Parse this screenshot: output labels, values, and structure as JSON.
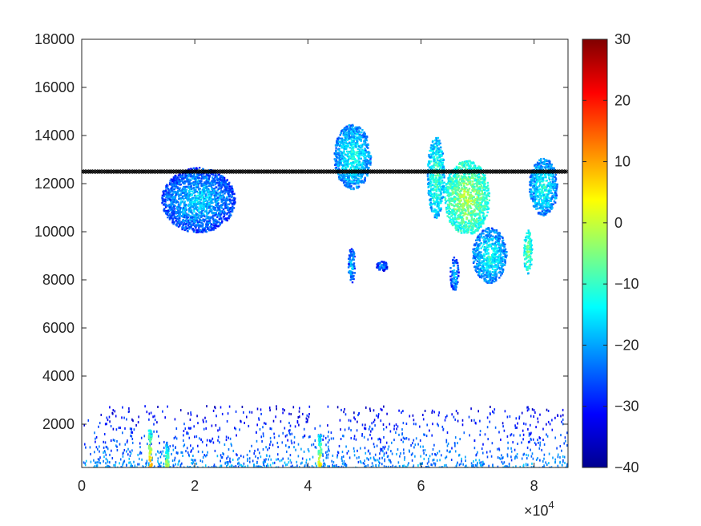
{
  "chart_data": {
    "type": "heatmap",
    "title": "",
    "xlabel": "",
    "ylabel": "",
    "xlim": [
      0,
      86000
    ],
    "ylim": [
      200,
      18000
    ],
    "x_ticks": [
      0,
      20000,
      40000,
      60000,
      80000
    ],
    "x_tick_labels": [
      "0",
      "2",
      "4",
      "6",
      "8"
    ],
    "x_exponent_label": "×10",
    "x_exponent_power": "4",
    "y_ticks": [
      2000,
      4000,
      6000,
      8000,
      10000,
      12000,
      14000,
      16000,
      18000
    ],
    "y_tick_labels": [
      "2000",
      "4000",
      "6000",
      "8000",
      "10000",
      "12000",
      "14000",
      "16000",
      "18000"
    ],
    "colorbar": {
      "limits": [
        -40,
        30
      ],
      "ticks": [
        -40,
        -30,
        -20,
        -10,
        0,
        10,
        20,
        30
      ],
      "tick_labels": [
        "−40",
        "−30",
        "−20",
        "−10",
        "0",
        "10",
        "20",
        "30"
      ],
      "colormap": "jet"
    },
    "reference_line": {
      "y": 12500,
      "color": "#000000",
      "style": "dense black markers"
    },
    "echo_regions": [
      {
        "x": [
          14000,
          27000
        ],
        "y": [
          10000,
          12700
        ],
        "value": -22
      },
      {
        "x": [
          44500,
          51000
        ],
        "y": [
          11800,
          14500
        ],
        "value": -18
      },
      {
        "x": [
          47000,
          48200
        ],
        "y": [
          7900,
          9400
        ],
        "value": -22
      },
      {
        "x": [
          52000,
          54000
        ],
        "y": [
          8400,
          8800
        ],
        "value": -26
      },
      {
        "x": [
          61000,
          64000
        ],
        "y": [
          10600,
          14000
        ],
        "value": -14
      },
      {
        "x": [
          64000,
          72000
        ],
        "y": [
          9900,
          13000
        ],
        "value": -8
      },
      {
        "x": [
          69000,
          75000
        ],
        "y": [
          7900,
          10200
        ],
        "value": -18
      },
      {
        "x": [
          65000,
          66500
        ],
        "y": [
          7600,
          9000
        ],
        "value": -22
      },
      {
        "x": [
          78000,
          79500
        ],
        "y": [
          8300,
          10100
        ],
        "value": -10
      },
      {
        "x": [
          79000,
          84000
        ],
        "y": [
          10700,
          13100
        ],
        "value": -18
      },
      {
        "x": [
          0,
          86000
        ],
        "y": [
          200,
          2800
        ],
        "value": -28,
        "type": "surface clutter"
      }
    ],
    "hot_spots": [
      {
        "x": 12000,
        "y_top": 1800,
        "value": 15
      },
      {
        "x": 15000,
        "y_top": 1300,
        "value": 5
      },
      {
        "x": 42000,
        "y_top": 1700,
        "value": 10
      }
    ]
  },
  "colors": {
    "axis": "#262626",
    "background": "#ffffff",
    "reference_line": "#000000"
  }
}
